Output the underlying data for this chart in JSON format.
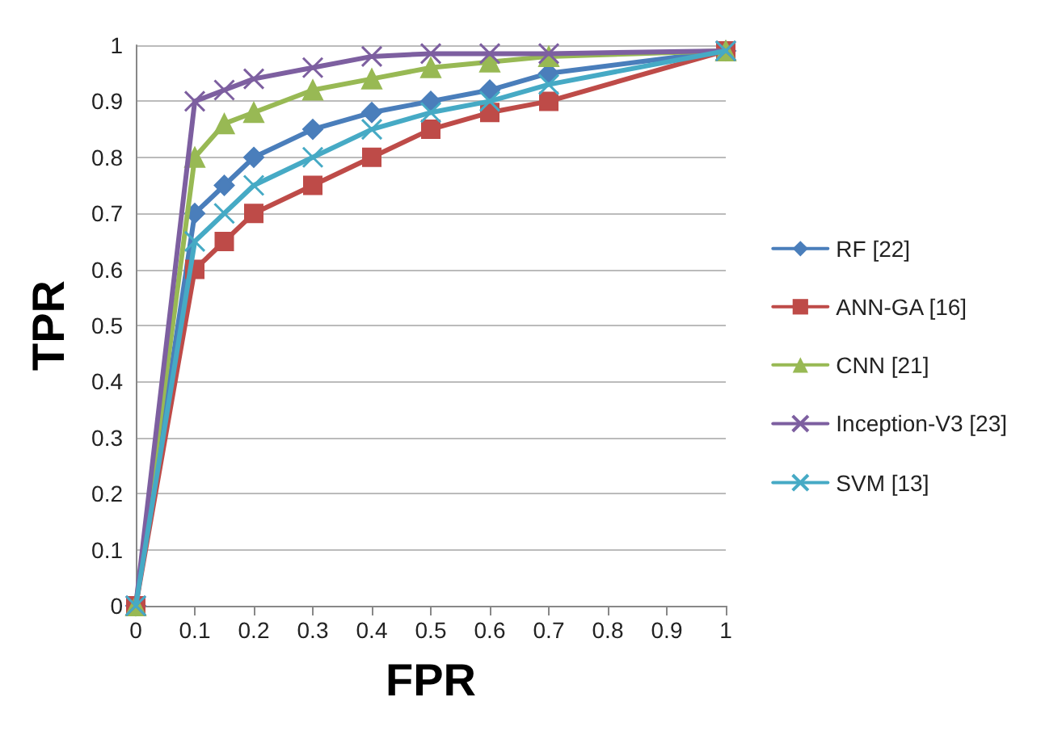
{
  "chart_data": {
    "type": "line",
    "xlabel": "FPR",
    "ylabel": "TPR",
    "xlim": [
      0,
      1
    ],
    "xticks": [
      0,
      0.1,
      0.2,
      0.3,
      0.4,
      0.5,
      0.6,
      0.7,
      0.8,
      0.9,
      1
    ],
    "ylim": [
      0,
      1
    ],
    "yticks": [
      0,
      0.1,
      0.2,
      0.3,
      0.4,
      0.5,
      0.6,
      0.7,
      0.8,
      0.9,
      1
    ],
    "x": [
      0,
      0.1,
      0.15,
      0.2,
      0.3,
      0.4,
      0.5,
      0.6,
      0.7,
      1
    ],
    "grid": "y",
    "legend": "right",
    "line_style": "solid",
    "series": [
      {
        "name": "RF [22]",
        "color": "#4a7ebb",
        "marker": "diamond",
        "values": [
          0,
          0.7,
          0.75,
          0.8,
          0.85,
          0.88,
          0.9,
          0.92,
          0.95,
          0.99
        ]
      },
      {
        "name": "ANN-GA [16]",
        "color": "#be4b48",
        "marker": "square",
        "values": [
          0,
          0.6,
          0.65,
          0.7,
          0.75,
          0.8,
          0.85,
          0.88,
          0.9,
          0.99
        ]
      },
      {
        "name": "CNN [21]",
        "color": "#98b954",
        "marker": "triangle",
        "values": [
          0,
          0.8,
          0.86,
          0.88,
          0.92,
          0.94,
          0.96,
          0.97,
          0.98,
          0.99
        ]
      },
      {
        "name": "Inception-V3 [23]",
        "color": "#7d5fa0",
        "marker": "cross",
        "values": [
          0,
          0.9,
          0.92,
          0.94,
          0.96,
          0.98,
          0.985,
          0.985,
          0.985,
          0.99
        ]
      },
      {
        "name": "SVM [13]",
        "color": "#46aac5",
        "marker": "cross",
        "values": [
          0,
          0.65,
          0.7,
          0.75,
          0.8,
          0.85,
          0.88,
          0.9,
          0.93,
          0.99
        ]
      }
    ]
  }
}
